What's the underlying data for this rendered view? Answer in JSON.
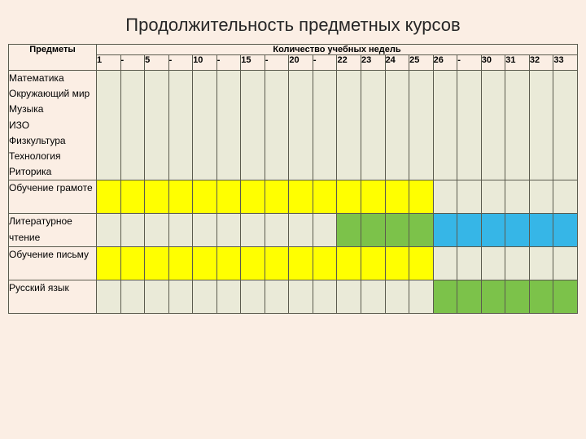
{
  "title": "Продолжительность предметных курсов",
  "header": {
    "subjects": "Предметы",
    "weeks": "Количество учебных недель"
  },
  "colors": {
    "cream": "#eaead8",
    "yellow": "#ffff00",
    "green": "#7cc24a",
    "blue": "#36b6e7",
    "background": "#fbeee4",
    "border": "#5b5b4e"
  },
  "week_cols": [
    "1",
    "-",
    "5",
    "-",
    "10",
    "-",
    "15",
    "-",
    "20",
    "-",
    "22",
    "23",
    "24",
    "25",
    "26",
    "-",
    "30",
    "31",
    "32",
    "33"
  ],
  "rows": [
    {
      "label": "Математика\nОкружающий мир\nМузыка\nИЗО\nФизкультура\nТехнология\nРиторика",
      "pattern": [
        "cream",
        "cream",
        "cream",
        "cream",
        "cream",
        "cream",
        "cream",
        "cream",
        "cream",
        "cream",
        "cream",
        "cream",
        "cream",
        "cream",
        "cream",
        "cream",
        "cream",
        "cream",
        "cream",
        "cream"
      ],
      "tall": false
    },
    {
      "label": "Обучение грамоте",
      "pattern": [
        "yellow",
        "yellow",
        "yellow",
        "yellow",
        "yellow",
        "yellow",
        "yellow",
        "yellow",
        "yellow",
        "yellow",
        "yellow",
        "yellow",
        "yellow",
        "yellow",
        "cream",
        "cream",
        "cream",
        "cream",
        "cream",
        "cream"
      ],
      "tall": true
    },
    {
      "label": "Литературное чтение",
      "pattern": [
        "cream",
        "cream",
        "cream",
        "cream",
        "cream",
        "cream",
        "cream",
        "cream",
        "cream",
        "cream",
        "green",
        "green",
        "green",
        "green",
        "blue",
        "blue",
        "blue",
        "blue",
        "blue",
        "blue"
      ],
      "tall": true
    },
    {
      "label": "Обучение письму",
      "pattern": [
        "yellow",
        "yellow",
        "yellow",
        "yellow",
        "yellow",
        "yellow",
        "yellow",
        "yellow",
        "yellow",
        "yellow",
        "yellow",
        "yellow",
        "yellow",
        "yellow",
        "cream",
        "cream",
        "cream",
        "cream",
        "cream",
        "cream"
      ],
      "tall": true
    },
    {
      "label": "Русский язык",
      "pattern": [
        "cream",
        "cream",
        "cream",
        "cream",
        "cream",
        "cream",
        "cream",
        "cream",
        "cream",
        "cream",
        "cream",
        "cream",
        "cream",
        "cream",
        "green",
        "green",
        "green",
        "green",
        "green",
        "green"
      ],
      "tall": true
    }
  ]
}
